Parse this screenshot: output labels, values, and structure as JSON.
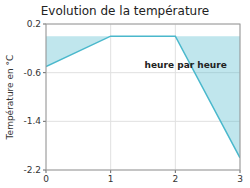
{
  "chart_data": {
    "type": "area",
    "title": "Evolution de la température",
    "xlabel": "heure par heure",
    "ylabel": "Température en °C",
    "x": [
      0,
      1,
      2,
      3
    ],
    "values": [
      -0.5,
      0.0,
      0.0,
      -2.0
    ],
    "color": "#4ab8cc",
    "xlim": [
      0,
      3
    ],
    "ylim": [
      -2.2,
      0.2
    ],
    "xticks": [
      0,
      1,
      2,
      3
    ],
    "yticks": [
      0.2,
      -0.6,
      -1.4,
      -2.2
    ],
    "grid": true
  }
}
